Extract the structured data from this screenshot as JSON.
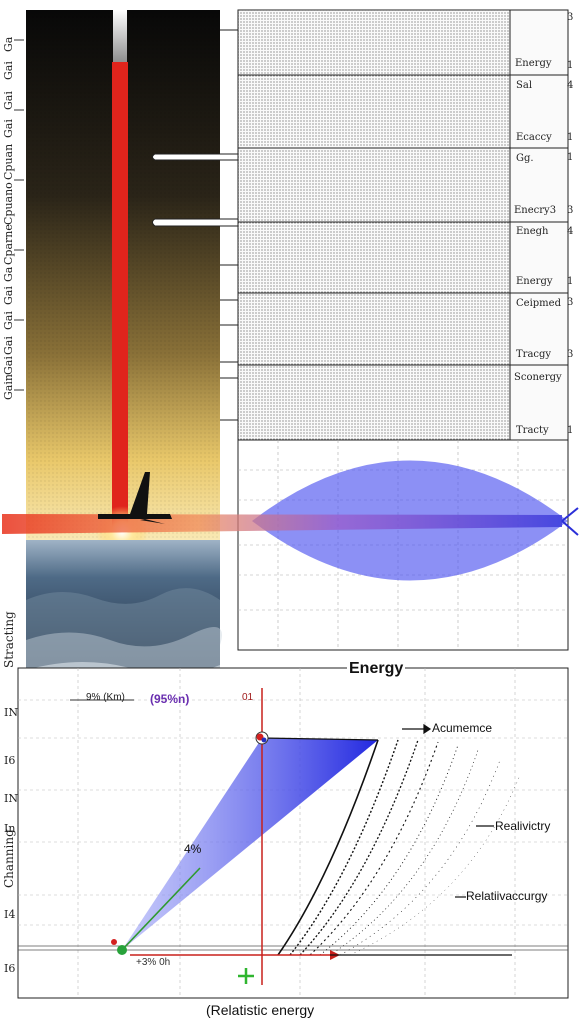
{
  "left_strip_labels": [
    "Ga",
    "Gai",
    "Gai",
    "Gai",
    "Cpuan",
    "Cpuano",
    "Cparne",
    "Ga",
    "Gai",
    "Gai",
    "Gai",
    "Gai",
    "Gain"
  ],
  "panels": [
    {
      "top_label": "",
      "bottom_label": "Energy",
      "top_num": "3",
      "bottom_num": "1"
    },
    {
      "top_label": "Sal",
      "bottom_label": "Ecaccy",
      "top_num": "4",
      "bottom_num": "1"
    },
    {
      "top_label": "Gg.",
      "bottom_label": "Enecry3",
      "top_num": "1",
      "bottom_num": "3"
    },
    {
      "top_label": "Enegh",
      "bottom_label": "Energy",
      "top_num": "4",
      "bottom_num": "1"
    },
    {
      "top_label": "Ceipmed",
      "bottom_label": "Tracgy",
      "top_num": "3",
      "bottom_num": "3"
    },
    {
      "top_label": "Sconergy",
      "bottom_label": "Tracty",
      "top_num": "",
      "bottom_num": "1"
    }
  ],
  "mid_left_label": "Stracting",
  "bottom_chart": {
    "title": "Energy",
    "xlabel": "(Relatistic energy",
    "ylabel": "Channing",
    "top_left_note": "9% (Km)",
    "top_left_note_2": "(95%n)",
    "red_line_label": "01",
    "mid_label": "4%",
    "bottom_note": "+3% 0h",
    "y_ticks": [
      "IN",
      "I6",
      "IN",
      "In",
      "I4",
      "I6"
    ],
    "annotations": [
      "Acumemce",
      "Realivictry",
      "Relatiivaccurgy"
    ]
  },
  "colors": {
    "beam_red": "#e0241c",
    "blue_fill": "#4f55f0",
    "sunset_gold": "#d9a53c",
    "green_line": "#2f9a2f"
  }
}
